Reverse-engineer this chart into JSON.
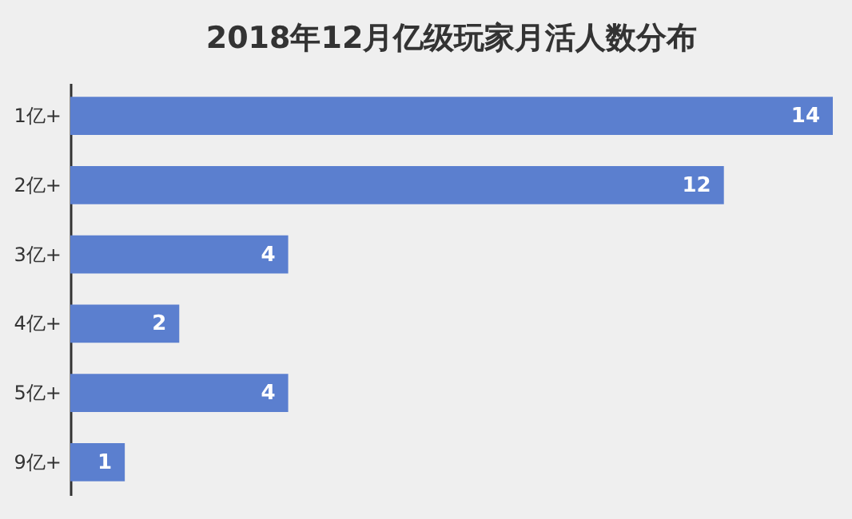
{
  "chart_data": {
    "type": "bar",
    "orientation": "horizontal",
    "title": "2018年12月亿级玩家月活人数分布",
    "categories": [
      "1亿+",
      "2亿+",
      "3亿+",
      "4亿+",
      "5亿+",
      "9亿+"
    ],
    "values": [
      14,
      12,
      4,
      2,
      4,
      1
    ],
    "color": "#5b7fcf",
    "data_labels": true
  }
}
